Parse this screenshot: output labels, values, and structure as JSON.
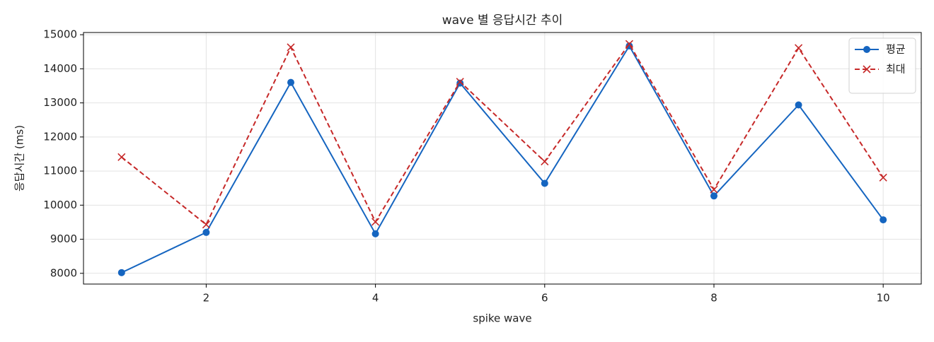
{
  "chart_data": {
    "type": "line",
    "title": "wave 별 응답시간 추이",
    "xlabel": "spike wave",
    "ylabel": "응답시간 (ms)",
    "x": [
      1,
      2,
      3,
      4,
      5,
      6,
      7,
      8,
      9,
      10
    ],
    "series": [
      {
        "name": "평균",
        "color": "#1565c0",
        "marker": "o",
        "linestyle": "solid",
        "values": [
          8020,
          9200,
          13600,
          9160,
          13580,
          10640,
          14670,
          10270,
          12940,
          9570
        ]
      },
      {
        "name": "최대",
        "color": "#c62828",
        "marker": "x",
        "linestyle": "dashed",
        "values": [
          11410,
          9430,
          14630,
          9510,
          13620,
          11280,
          14730,
          10460,
          14610,
          10810
        ]
      }
    ],
    "xlim": [
      0.55,
      10.45
    ],
    "xticks": [
      2,
      4,
      6,
      8,
      10
    ],
    "ylim": [
      7685,
      15065
    ],
    "yticks": [
      8000,
      9000,
      10000,
      11000,
      12000,
      13000,
      14000,
      15000
    ],
    "grid": true,
    "legend": "upper right"
  }
}
